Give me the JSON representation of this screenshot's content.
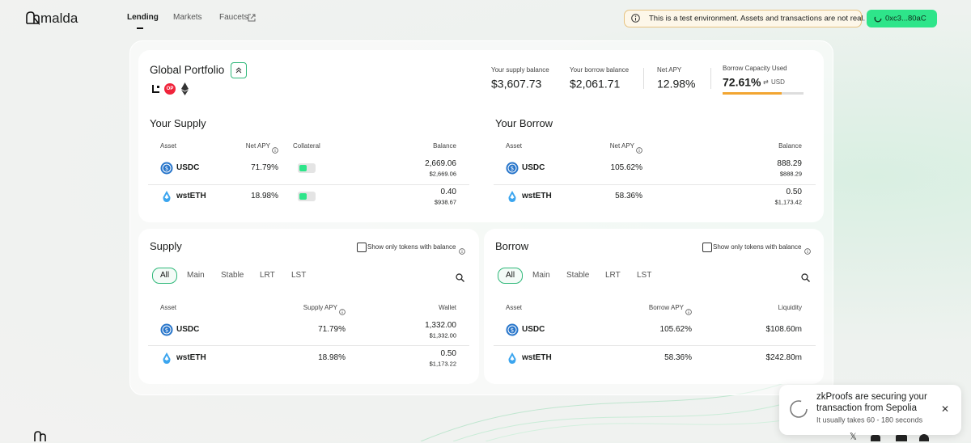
{
  "nav": {
    "logo": "malda",
    "links": [
      "Lending",
      "Markets",
      "Faucets"
    ]
  },
  "banner": "This is a test environment. Assets and transactions are not real.",
  "wallet": "0xc3...80aC",
  "portfolio": {
    "title": "Global Portfolio",
    "chain_badge": "OP",
    "stats": [
      {
        "label": "Your supply balance",
        "value": "$3,607.73"
      },
      {
        "label": "Your borrow balance",
        "value": "$2,061.71"
      },
      {
        "label": "Net APY",
        "value": "12.98%"
      }
    ],
    "capacity": {
      "label": "Borrow Capacity Used",
      "value": "72.61%",
      "unit": "USD"
    }
  },
  "your_supply": {
    "title": "Your Supply",
    "columns": [
      "Asset",
      "Net APY",
      "Collateral",
      "Balance"
    ],
    "rows": [
      {
        "asset": "USDC",
        "apy": "71.79%",
        "amount": "2,669.06",
        "usd": "$2,669.06"
      },
      {
        "asset": "wstETH",
        "apy": "18.98%",
        "amount": "0.40",
        "usd": "$938.67"
      }
    ]
  },
  "your_borrow": {
    "title": "Your Borrow",
    "columns": [
      "Asset",
      "Net APY",
      "Balance"
    ],
    "rows": [
      {
        "asset": "USDC",
        "apy": "105.62%",
        "amount": "888.29",
        "usd": "$888.29"
      },
      {
        "asset": "wstETH",
        "apy": "58.36%",
        "amount": "0.50",
        "usd": "$1,173.42"
      }
    ]
  },
  "supply_markets": {
    "title": "Supply",
    "filter_label": "Show only tokens with balance",
    "tabs": [
      "All",
      "Main",
      "Stable",
      "LRT",
      "LST"
    ],
    "columns": [
      "Asset",
      "Supply APY",
      "Wallet"
    ],
    "rows": [
      {
        "asset": "USDC",
        "apy": "71.79%",
        "amount": "1,332.00",
        "usd": "$1,332.00"
      },
      {
        "asset": "wstETH",
        "apy": "18.98%",
        "amount": "0.50",
        "usd": "$1,173.22"
      }
    ]
  },
  "borrow_markets": {
    "title": "Borrow",
    "filter_label": "Show only tokens with balance",
    "tabs": [
      "All",
      "Main",
      "Stable",
      "LRT",
      "LST"
    ],
    "columns": [
      "Asset",
      "Borrow APY",
      "Liquidity"
    ],
    "rows": [
      {
        "asset": "USDC",
        "apy": "105.62%",
        "amount": "$108.60m"
      },
      {
        "asset": "wstETH",
        "apy": "58.36%",
        "amount": "$242.80m"
      }
    ]
  },
  "toast": {
    "title": "zkProofs are securing your transaction from Sepolia",
    "subtitle": "It usually takes 60 - 180 seconds"
  }
}
